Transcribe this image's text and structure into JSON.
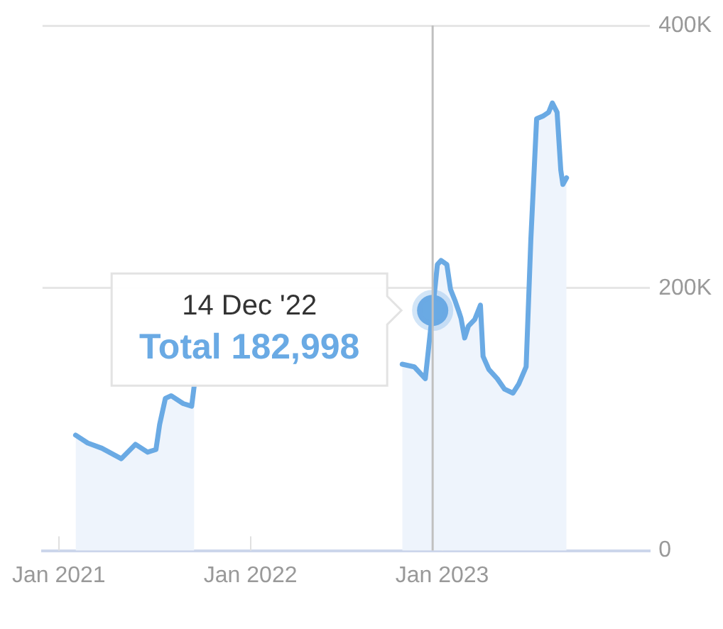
{
  "chart_data": {
    "type": "area",
    "x": [
      "2021-02-02",
      "2021-02-25",
      "2021-03-24",
      "2021-04-30",
      "2021-05-27",
      "2021-06-19",
      "2021-07-05",
      "2021-07-12",
      "2021-07-23",
      "2021-08-03",
      "2021-08-26",
      "2021-09-11",
      "2021-09-16",
      "2022-02-01",
      "2022-10-17",
      "2022-11-09",
      "2022-11-30",
      "2022-12-14",
      "2022-12-23",
      "2022-12-30",
      "2023-01-10",
      "2023-01-17",
      "2023-01-26",
      "2023-02-02",
      "2023-02-06",
      "2023-02-13",
      "2023-02-20",
      "2023-03-04",
      "2023-03-15",
      "2023-03-20",
      "2023-03-31",
      "2023-04-16",
      "2023-04-30",
      "2023-05-16",
      "2023-05-27",
      "2023-06-10",
      "2023-06-19",
      "2023-06-30",
      "2023-07-12",
      "2023-07-23",
      "2023-07-30",
      "2023-08-08",
      "2023-08-15",
      "2023-08-19",
      "2023-08-26"
    ],
    "series": [
      {
        "color": "#6aaae4",
        "values": [
          88000,
          82000,
          78000,
          70000,
          81000,
          75000,
          77000,
          96000,
          116000,
          118000,
          112000,
          110000,
          126000,
          null,
          142000,
          140000,
          131000,
          183000,
          218000,
          221000,
          218000,
          199000,
          190000,
          182000,
          177000,
          162000,
          171000,
          176000,
          187000,
          148000,
          138000,
          131000,
          123000,
          120000,
          127000,
          140000,
          237000,
          329000,
          331000,
          334000,
          341000,
          334000,
          290000,
          279000,
          284000
        ]
      },
      {
        "type": "scatter",
        "marker": "circle",
        "color": "#6aaae4",
        "x": [
          "2022-12-14"
        ],
        "values": [
          183000
        ]
      }
    ],
    "xlim": [
      "2020-12-01",
      "2024-02-01"
    ],
    "xticks": [
      {
        "value": "2021-01-01",
        "label": "Jan 2021"
      },
      {
        "value": "2022-01-01",
        "label": "Jan 2022"
      },
      {
        "value": "2023-01-01",
        "label": "Jan 2023"
      }
    ],
    "ylim": [
      0,
      400000
    ],
    "yticks": [
      {
        "value": 0,
        "label": "0"
      },
      {
        "value": 200000,
        "label": "200K"
      },
      {
        "value": 400000,
        "label": "400K"
      }
    ],
    "grid": "y",
    "ref_lines": [
      {
        "axis": "x",
        "value": "2022-12-14",
        "color": "#c0c0c0"
      }
    ],
    "annotations": [
      "14 Dec '22",
      "Total 182,998"
    ]
  }
}
